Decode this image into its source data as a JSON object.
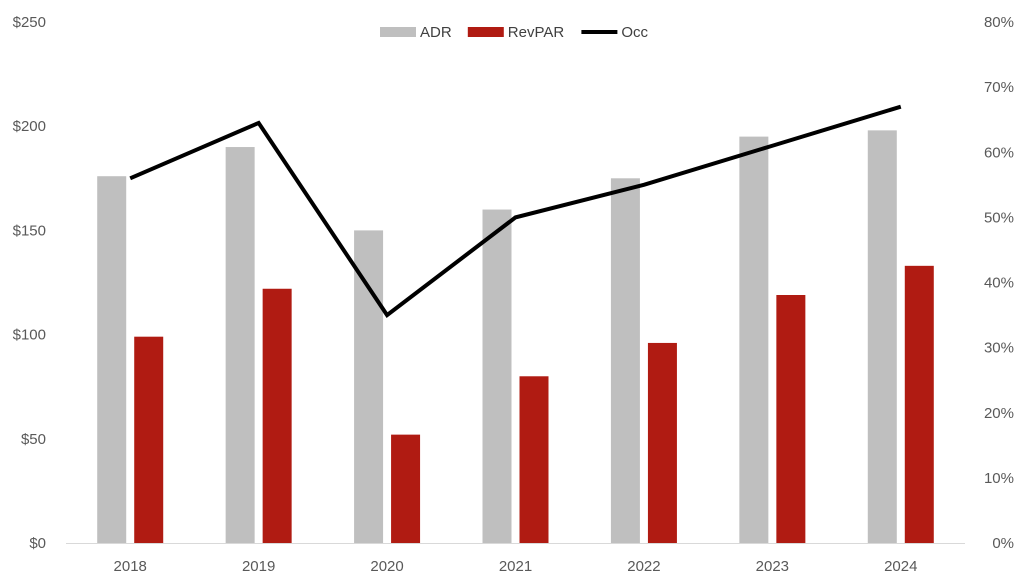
{
  "chart_data": {
    "type": "bar",
    "categories": [
      "2018",
      "2019",
      "2020",
      "2021",
      "2022",
      "2023",
      "2024"
    ],
    "series": [
      {
        "name": "ADR",
        "type": "bar",
        "axis": "left",
        "color": "#BFBFBF",
        "values": [
          176,
          190,
          150,
          160,
          175,
          195,
          198
        ]
      },
      {
        "name": "RevPAR",
        "type": "bar",
        "axis": "left",
        "color": "#B01B12",
        "values": [
          99,
          122,
          52,
          80,
          96,
          119,
          133
        ]
      },
      {
        "name": "Occ",
        "type": "line",
        "axis": "right",
        "color": "#000000",
        "values": [
          0.56,
          0.645,
          0.35,
          0.5,
          0.55,
          0.61,
          0.67
        ]
      }
    ],
    "y_left": {
      "min": 0,
      "max": 250,
      "ticks": [
        0,
        50,
        100,
        150,
        200,
        250
      ],
      "tick_labels": [
        "$0",
        "$50",
        "$100",
        "$150",
        "$200",
        "$250"
      ]
    },
    "y_right": {
      "min": 0,
      "max": 0.8,
      "ticks": [
        0,
        0.1,
        0.2,
        0.3,
        0.4,
        0.5,
        0.6,
        0.7,
        0.8
      ],
      "tick_labels": [
        "0%",
        "10%",
        "20%",
        "30%",
        "40%",
        "50%",
        "60%",
        "70%",
        "80%"
      ]
    },
    "legend": {
      "position": "top-center",
      "entries": [
        "ADR",
        "RevPAR",
        "Occ"
      ]
    },
    "title": "",
    "xlabel": "",
    "ylabel": "",
    "grid": false
  }
}
